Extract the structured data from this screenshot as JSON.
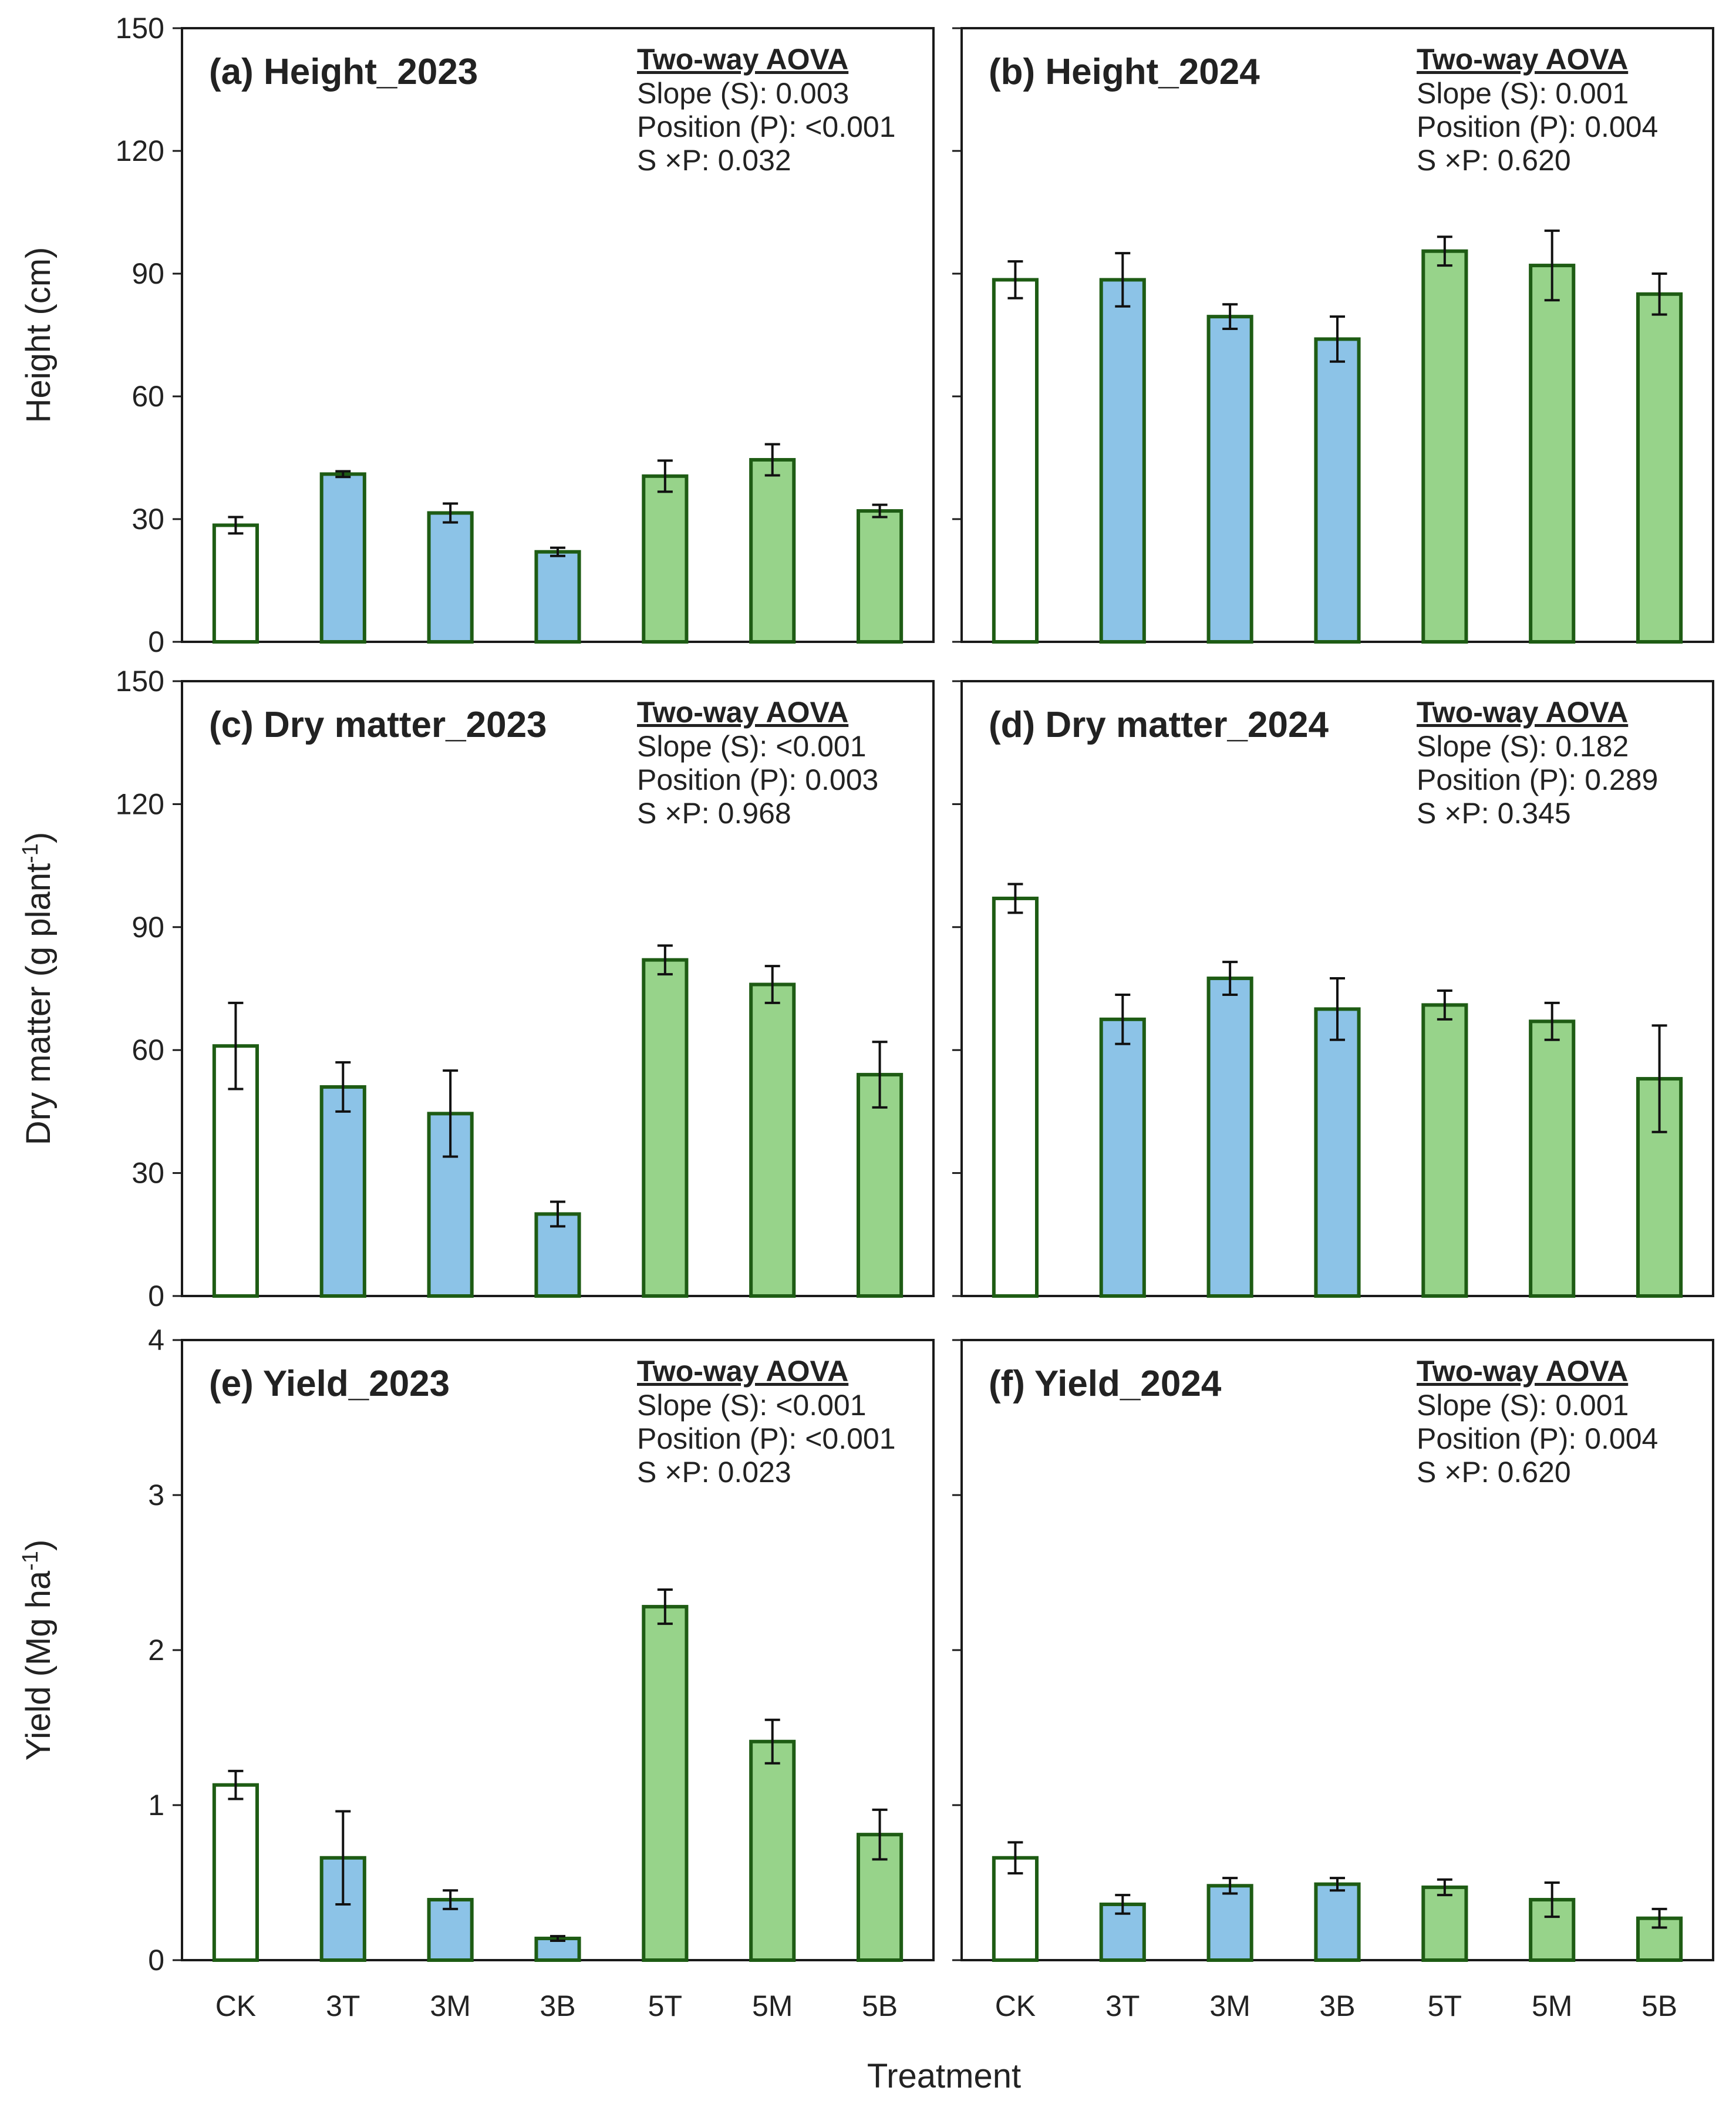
{
  "figure": {
    "xlabel": "Treatment",
    "colors": {
      "ck_fill": "#ffffff",
      "three_fill": "#8cc3e7",
      "five_fill": "#97d38a",
      "bar_edge": "#1e5c14",
      "frame": "#1a1a1a",
      "error_bar": "#111111"
    }
  },
  "chart_data": [
    {
      "type": "bar",
      "title": "(a) Height_2023",
      "ylabel": "Height (cm)",
      "ylabel_parts": [
        {
          "t": "Height (cm)"
        }
      ],
      "ylim": [
        0,
        150
      ],
      "yticks": [
        "0",
        "30",
        "60",
        "90",
        "120",
        "150"
      ],
      "show_ytick_labels": true,
      "show_xtick_labels": false,
      "categories": [
        "CK",
        "3T",
        "3M",
        "3B",
        "5T",
        "5M",
        "5B"
      ],
      "values": [
        28.5,
        41,
        31.5,
        22,
        40.5,
        44.5,
        32
      ],
      "errors": [
        2.0,
        0.7,
        2.3,
        1.0,
        3.8,
        3.8,
        1.5
      ],
      "stats": {
        "header": "Two-way AOVA",
        "lines": [
          "Slope (S): 0.003",
          "Position (P): <0.001",
          "S ×P: 0.032"
        ]
      }
    },
    {
      "type": "bar",
      "title": "(b) Height_2024",
      "ylabel": "",
      "ylabel_parts": [],
      "ylim": [
        0,
        150
      ],
      "yticks": [
        "0",
        "30",
        "60",
        "90",
        "120",
        "150"
      ],
      "show_ytick_labels": false,
      "show_xtick_labels": false,
      "categories": [
        "CK",
        "3T",
        "3M",
        "3B",
        "5T",
        "5M",
        "5B"
      ],
      "values": [
        88.5,
        88.5,
        79.5,
        74,
        95.5,
        92,
        85
      ],
      "errors": [
        4.5,
        6.5,
        3.0,
        5.5,
        3.5,
        8.5,
        5.0
      ],
      "stats": {
        "header": "Two-way AOVA",
        "lines": [
          "Slope (S): 0.001",
          "Position (P): 0.004",
          "S ×P: 0.620"
        ]
      }
    },
    {
      "type": "bar",
      "title": "(c) Dry matter_2023",
      "ylabel": "Dry matter (g plant-1)",
      "ylabel_parts": [
        {
          "t": "Dry matter (g plant"
        },
        {
          "t": "-1",
          "sup": true
        },
        {
          "t": ")"
        }
      ],
      "ylim": [
        0,
        150
      ],
      "yticks": [
        "0",
        "30",
        "60",
        "90",
        "120",
        "150"
      ],
      "show_ytick_labels": true,
      "show_xtick_labels": false,
      "categories": [
        "CK",
        "3T",
        "3M",
        "3B",
        "5T",
        "5M",
        "5B"
      ],
      "values": [
        61,
        51,
        44.5,
        20,
        82,
        76,
        54
      ],
      "errors": [
        10.5,
        6.0,
        10.5,
        3.0,
        3.5,
        4.5,
        8.0
      ],
      "stats": {
        "header": "Two-way AOVA",
        "lines": [
          "Slope (S): <0.001",
          "Position (P): 0.003",
          "S ×P: 0.968"
        ]
      }
    },
    {
      "type": "bar",
      "title": "(d) Dry matter_2024",
      "ylabel": "",
      "ylabel_parts": [],
      "ylim": [
        0,
        150
      ],
      "yticks": [
        "0",
        "30",
        "60",
        "90",
        "120",
        "150"
      ],
      "show_ytick_labels": false,
      "show_xtick_labels": false,
      "categories": [
        "CK",
        "3T",
        "3M",
        "3B",
        "5T",
        "5M",
        "5B"
      ],
      "values": [
        97,
        67.5,
        77.5,
        70,
        71,
        67,
        53
      ],
      "errors": [
        3.5,
        6.0,
        4.0,
        7.5,
        3.5,
        4.5,
        13.0
      ],
      "stats": {
        "header": "Two-way AOVA",
        "lines": [
          "Slope (S): 0.182",
          "Position (P): 0.289",
          "S ×P: 0.345"
        ]
      }
    },
    {
      "type": "bar",
      "title": "(e) Yield_2023",
      "ylabel": "Yield (Mg ha-1)",
      "ylabel_parts": [
        {
          "t": "Yield (Mg ha"
        },
        {
          "t": "-1",
          "sup": true
        },
        {
          "t": ")"
        }
      ],
      "ylim": [
        0,
        4
      ],
      "yticks": [
        "0",
        "1",
        "2",
        "3",
        "4"
      ],
      "show_ytick_labels": true,
      "show_xtick_labels": true,
      "categories": [
        "CK",
        "3T",
        "3M",
        "3B",
        "5T",
        "5M",
        "5B"
      ],
      "values": [
        1.13,
        0.66,
        0.39,
        0.14,
        2.28,
        1.41,
        0.81
      ],
      "errors": [
        0.09,
        0.3,
        0.06,
        0.015,
        0.11,
        0.14,
        0.16
      ],
      "stats": {
        "header": "Two-way AOVA",
        "lines": [
          "Slope (S): <0.001",
          "Position (P): <0.001",
          "S ×P: 0.023"
        ]
      }
    },
    {
      "type": "bar",
      "title": "(f) Yield_2024",
      "ylabel": "",
      "ylabel_parts": [],
      "ylim": [
        0,
        4
      ],
      "yticks": [
        "0",
        "1",
        "2",
        "3",
        "4"
      ],
      "show_ytick_labels": false,
      "show_xtick_labels": true,
      "categories": [
        "CK",
        "3T",
        "3M",
        "3B",
        "5T",
        "5M",
        "5B"
      ],
      "values": [
        0.66,
        0.36,
        0.48,
        0.49,
        0.47,
        0.39,
        0.27
      ],
      "errors": [
        0.1,
        0.06,
        0.05,
        0.04,
        0.05,
        0.11,
        0.06
      ],
      "stats": {
        "header": "Two-way AOVA",
        "lines": [
          "Slope (S): 0.001",
          "Position (P): 0.004",
          "S ×P: 0.620"
        ]
      }
    }
  ]
}
